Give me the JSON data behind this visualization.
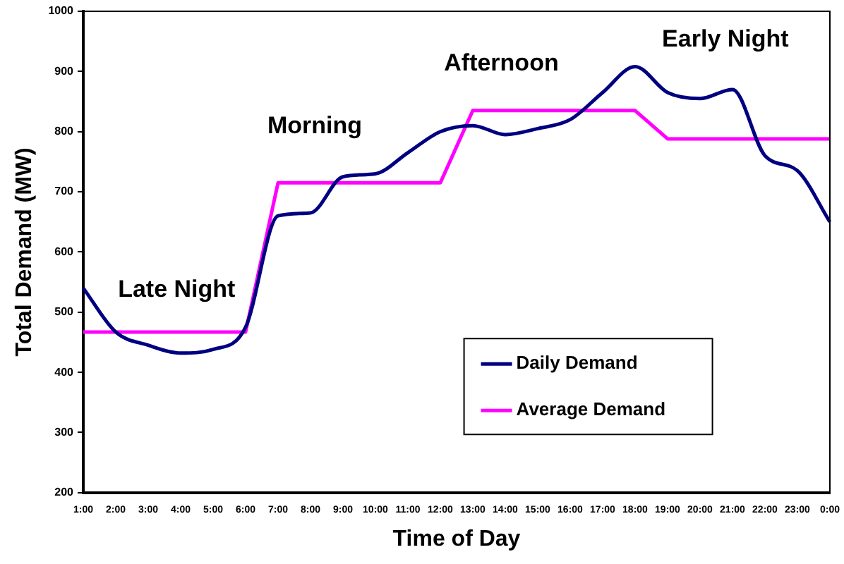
{
  "chart_data": {
    "type": "line",
    "xlabel": "Time of Day",
    "ylabel": "Total Demand (MW)",
    "categories": [
      "1:00",
      "2:00",
      "3:00",
      "4:00",
      "5:00",
      "6:00",
      "7:00",
      "8:00",
      "9:00",
      "10:00",
      "11:00",
      "12:00",
      "13:00",
      "14:00",
      "15:00",
      "16:00",
      "17:00",
      "18:00",
      "19:00",
      "20:00",
      "21:00",
      "22:00",
      "23:00",
      "0:00"
    ],
    "series": [
      {
        "name": "Daily Demand",
        "color": "#000080",
        "values": [
          540,
          467,
          445,
          432,
          438,
          475,
          660,
          665,
          725,
          730,
          765,
          800,
          810,
          795,
          805,
          820,
          865,
          908,
          865,
          855,
          870,
          760,
          735,
          650
        ]
      },
      {
        "name": "Average Demand",
        "color": "#ff00ff",
        "values": [
          467,
          467,
          467,
          467,
          467,
          467,
          715,
          715,
          715,
          715,
          715,
          715,
          835,
          835,
          835,
          835,
          835,
          835,
          788,
          788,
          788,
          788,
          788,
          788
        ]
      }
    ],
    "ylim": [
      200,
      1000
    ],
    "yticks": [
      200,
      300,
      400,
      500,
      600,
      700,
      800,
      900,
      1000
    ],
    "annotations": [
      "Late Night",
      "Morning",
      "Afternoon",
      "Early Night"
    ],
    "legend": "bottom right",
    "grid": false,
    "marker": "none",
    "line_style": "solid"
  }
}
